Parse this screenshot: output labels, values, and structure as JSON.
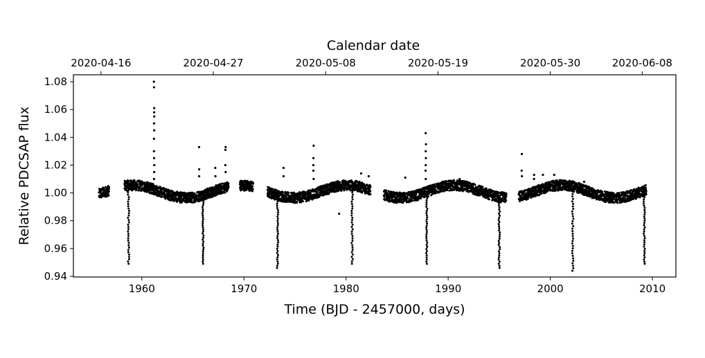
{
  "chart_data": {
    "type": "scatter",
    "title": "",
    "xlabel": "Time (BJD - 2457000, days)",
    "ylabel": "Relative PDCSAP flux",
    "secondary_xlabel": "Calendar date",
    "xlim": [
      1953.3,
      2012.3
    ],
    "ylim": [
      0.9395,
      1.085
    ],
    "x_ticks": [
      1960,
      1970,
      1980,
      1990,
      2000,
      2010
    ],
    "x_tick_labels": [
      "1960",
      "1970",
      "1980",
      "1990",
      "2000",
      "2010"
    ],
    "y_ticks": [
      0.94,
      0.96,
      0.98,
      1.0,
      1.02,
      1.04,
      1.06,
      1.08
    ],
    "y_tick_labels": [
      "0.94",
      "0.96",
      "0.98",
      "1.00",
      "1.02",
      "1.04",
      "1.06",
      "1.08"
    ],
    "secondary_x_ticks": [
      1956.0,
      1967.0,
      1978.0,
      1989.0,
      2000.0,
      2009.0
    ],
    "secondary_x_tick_labels": [
      "2020-04-16",
      "2020-04-27",
      "2020-05-08",
      "2020-05-19",
      "2020-05-30",
      "2020-06-08"
    ],
    "grid": false,
    "marker_color": "#000000",
    "segments": [
      [
        1955.8,
        1956.8
      ],
      [
        1958.3,
        1968.5
      ],
      [
        1969.6,
        1970.9
      ],
      [
        1972.3,
        1982.4
      ],
      [
        1983.7,
        1995.7
      ],
      [
        1996.9,
        2009.4
      ]
    ],
    "transits": [
      {
        "t": 1958.7,
        "min": 0.949
      },
      {
        "t": 1966.0,
        "min": 0.949
      },
      {
        "t": 1973.3,
        "min": 0.946
      },
      {
        "t": 1980.6,
        "min": 0.949
      },
      {
        "t": 1987.9,
        "min": 0.949
      },
      {
        "t": 1995.0,
        "min": 0.946
      },
      {
        "t": 2002.2,
        "min": 0.944
      },
      {
        "t": 2009.2,
        "min": 0.949
      }
    ],
    "flares": [
      {
        "t": 1961.2,
        "y": [
          1.01,
          1.015,
          1.02,
          1.025,
          1.03,
          1.039,
          1.045,
          1.05,
          1.055,
          1.058,
          1.061,
          1.076,
          1.08
        ]
      },
      {
        "t": 1965.6,
        "y": [
          1.012,
          1.017,
          1.033
        ]
      },
      {
        "t": 1967.2,
        "y": [
          1.012,
          1.018
        ]
      },
      {
        "t": 1968.2,
        "y": [
          1.015,
          1.02,
          1.031,
          1.033
        ]
      },
      {
        "t": 1969.9,
        "y": [
          1.007
        ]
      },
      {
        "t": 1973.9,
        "y": [
          1.012,
          1.018
        ]
      },
      {
        "t": 1976.8,
        "y": [
          1.01,
          1.016,
          1.02,
          1.025,
          1.034
        ]
      },
      {
        "t": 1981.5,
        "y": [
          1.014
        ]
      },
      {
        "t": 1982.2,
        "y": [
          1.012
        ]
      },
      {
        "t": 1985.8,
        "y": [
          1.011
        ]
      },
      {
        "t": 1987.8,
        "y": [
          1.01,
          1.016,
          1.02,
          1.025,
          1.03,
          1.035,
          1.043
        ]
      },
      {
        "t": 1991.1,
        "y": [
          1.01
        ]
      },
      {
        "t": 1997.2,
        "y": [
          1.012,
          1.016,
          1.028
        ]
      },
      {
        "t": 1998.4,
        "y": [
          1.013,
          1.01
        ]
      },
      {
        "t": 1999.3,
        "y": [
          1.013
        ]
      },
      {
        "t": 2000.4,
        "y": [
          1.013
        ]
      },
      {
        "t": 2003.3,
        "y": [
          1.008
        ]
      },
      {
        "t": 1979.3,
        "y": [
          0.985
        ]
      }
    ]
  }
}
